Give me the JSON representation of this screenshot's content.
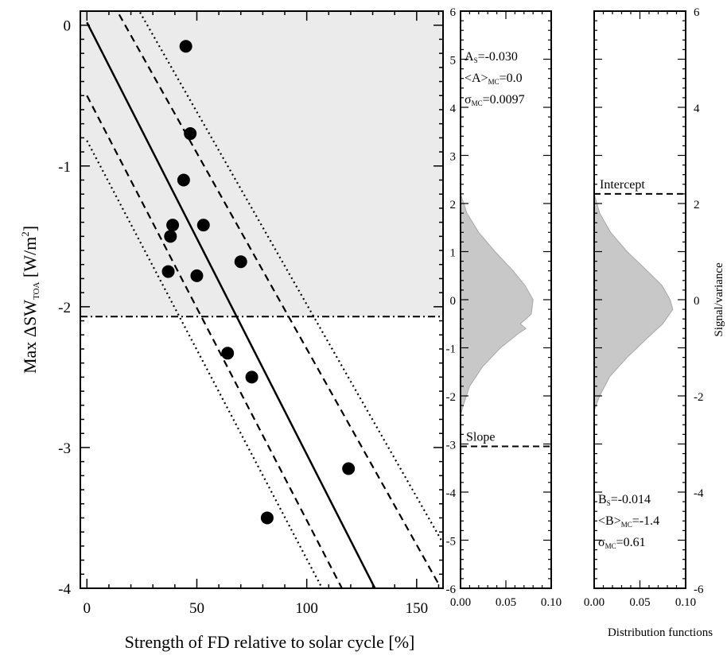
{
  "chart_data": [
    {
      "type": "scatter",
      "panel": "main",
      "xlabel": "Strength of FD relative to solar cycle [%]",
      "ylabel": {
        "prefix": "Max ΔSW",
        "sub": "TOA",
        "unit_open": " [W/m",
        "sup": "2",
        "unit_close": "]"
      },
      "xlim": [
        -3,
        162
      ],
      "ylim": [
        -4,
        0.1
      ],
      "x_ticks": [
        0,
        50,
        100,
        150
      ],
      "y_ticks": [
        0,
        -1,
        -2,
        -3,
        -4
      ],
      "shaded_region": {
        "y_from": -2.07,
        "y_to": 0.1,
        "color": "#ebebeb"
      },
      "threshold_line": {
        "y": -2.07,
        "style": "dash-dot"
      },
      "points": [
        {
          "x": 45,
          "y": -0.15
        },
        {
          "x": 47,
          "y": -0.77
        },
        {
          "x": 44,
          "y": -1.1
        },
        {
          "x": 39,
          "y": -1.42
        },
        {
          "x": 53,
          "y": -1.42
        },
        {
          "x": 38,
          "y": -1.5
        },
        {
          "x": 70,
          "y": -1.68
        },
        {
          "x": 37,
          "y": -1.75
        },
        {
          "x": 50,
          "y": -1.78
        },
        {
          "x": 64,
          "y": -2.33
        },
        {
          "x": 75,
          "y": -2.5
        },
        {
          "x": 119,
          "y": -3.15
        },
        {
          "x": 82,
          "y": -3.5
        }
      ],
      "fit_lines": [
        {
          "style": "solid",
          "x1": 0,
          "y1": 0.02,
          "x2": 131,
          "y2": -4.0
        },
        {
          "style": "dashed",
          "x1": 12,
          "y1": 0.15,
          "x2": 160,
          "y2": -3.97
        },
        {
          "style": "dashed",
          "x1": 0,
          "y1": -0.5,
          "x2": 116,
          "y2": -4.0
        },
        {
          "style": "dotted",
          "x1": 22,
          "y1": 0.15,
          "x2": 162,
          "y2": -3.68
        },
        {
          "style": "dotted",
          "x1": 0,
          "y1": -0.82,
          "x2": 107,
          "y2": -4.0
        }
      ]
    },
    {
      "type": "area",
      "panel": "slope-distribution",
      "xlim": [
        0,
        0.1
      ],
      "ylim": [
        -6,
        6
      ],
      "x_ticks": [
        "0.00",
        "0.05",
        "0.10"
      ],
      "y_ticks": [
        6,
        5,
        4,
        3,
        2,
        1,
        0,
        -1,
        -2,
        -3,
        -4,
        -5,
        -6
      ],
      "distribution": {
        "y": [
          2.2,
          1.8,
          1.4,
          1.0,
          0.6,
          0.3,
          0.0,
          -0.3,
          -0.5,
          -0.6,
          -0.7,
          -1.0,
          -1.4,
          -1.8,
          -2.2,
          -2.4
        ],
        "density": [
          0.0,
          0.007,
          0.02,
          0.038,
          0.058,
          0.071,
          0.08,
          0.078,
          0.066,
          0.072,
          0.064,
          0.044,
          0.024,
          0.01,
          0.003,
          0.0
        ]
      },
      "marker": {
        "label": "Slope",
        "y": -3.05
      },
      "annotations": [
        {
          "main": "A",
          "sub": "S",
          "rest": "=-0.030"
        },
        {
          "main": "<A>",
          "sub": "MC",
          "rest": "=0.0"
        },
        {
          "main": "σ",
          "sub": "MC",
          "rest": "=0.0097"
        }
      ]
    },
    {
      "type": "area",
      "panel": "intercept-distribution",
      "xlabel": "Distribution functions",
      "ylabel": "Signal/variance",
      "xlim": [
        0,
        0.1
      ],
      "ylim": [
        -6,
        6
      ],
      "x_ticks": [
        "0.00",
        "0.05",
        "0.10"
      ],
      "y_ticks": [
        6,
        4,
        2,
        0,
        -2,
        -4,
        -6
      ],
      "distribution": {
        "y": [
          2.2,
          1.8,
          1.4,
          1.0,
          0.6,
          0.3,
          0.0,
          -0.2,
          -0.5,
          -0.8,
          -1.2,
          -1.6,
          -2.0,
          -2.3
        ],
        "density": [
          0.0,
          0.006,
          0.018,
          0.036,
          0.058,
          0.074,
          0.083,
          0.086,
          0.075,
          0.058,
          0.036,
          0.017,
          0.006,
          0.0
        ]
      },
      "marker": {
        "label": "Intercept",
        "y": 2.2
      },
      "annotations": [
        {
          "main": "B",
          "sub": "S",
          "rest": "=-0.014"
        },
        {
          "main": "<B>",
          "sub": "MC",
          "rest": "=-1.4"
        },
        {
          "main": "σ",
          "sub": "MC",
          "rest": "=0.61"
        }
      ]
    }
  ]
}
